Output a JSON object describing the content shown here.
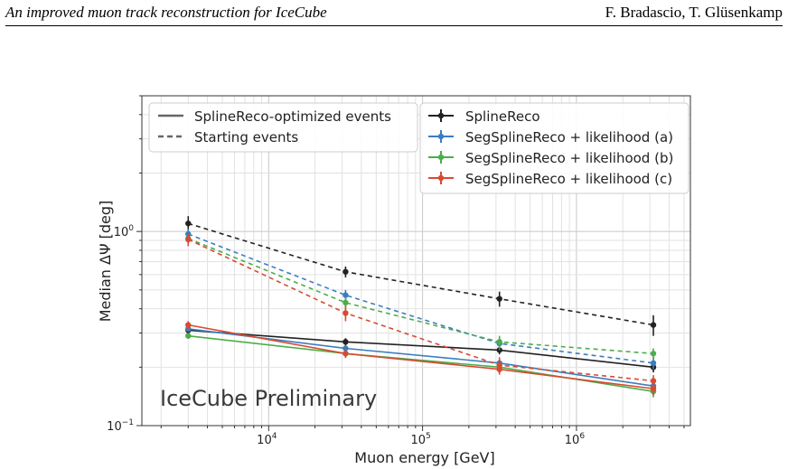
{
  "header": {
    "paper_title": "An improved muon track reconstruction for IceCube",
    "authors": "F. Bradascio, T. Glüsenkamp"
  },
  "chart_data": {
    "type": "line",
    "xscale": "log",
    "yscale": "log",
    "xlabel": "Muon energy [GeV]",
    "ylabel": "Median ΔΨ [deg]",
    "xlim": [
      1500,
      5500000
    ],
    "ylim": [
      0.1,
      5.0
    ],
    "x_ticks": [
      {
        "value": 10000,
        "base": "10",
        "exp": "4"
      },
      {
        "value": 100000,
        "base": "10",
        "exp": "5"
      },
      {
        "value": 1000000,
        "base": "10",
        "exp": "6"
      }
    ],
    "y_ticks": [
      {
        "value": 0.1,
        "base": "10",
        "exp": "−1"
      },
      {
        "value": 1,
        "base": "10",
        "exp": "0"
      }
    ],
    "grid": true,
    "annotation": "IceCube Preliminary",
    "style_legend": [
      {
        "label": "SplineReco-optimized events",
        "dash": "solid"
      },
      {
        "label": "Starting events",
        "dash": "dashed"
      }
    ],
    "x": [
      3000,
      31600,
      316000,
      3160000
    ],
    "series": [
      {
        "name": "SplineReco",
        "color": "#222222",
        "solid": [
          0.31,
          0.27,
          0.245,
          0.2
        ],
        "dashed": [
          1.1,
          0.62,
          0.45,
          0.33
        ],
        "solid_err": [
          0.01,
          0.012,
          0.012,
          0.012
        ],
        "dashed_err": [
          0.1,
          0.04,
          0.04,
          0.04
        ]
      },
      {
        "name": "SegSplineReco + likelihood (a)",
        "color": "#3a7ebf",
        "solid": [
          0.315,
          0.25,
          0.21,
          0.16
        ],
        "dashed": [
          0.97,
          0.47,
          0.265,
          0.21
        ],
        "solid_err": [
          0.01,
          0.01,
          0.01,
          0.01
        ],
        "dashed_err": [
          0.06,
          0.03,
          0.02,
          0.015
        ]
      },
      {
        "name": "SegSplineReco + likelihood (b)",
        "color": "#4aae4a",
        "solid": [
          0.29,
          0.235,
          0.2,
          0.15
        ],
        "dashed": [
          0.92,
          0.43,
          0.27,
          0.235
        ],
        "solid_err": [
          0.01,
          0.01,
          0.01,
          0.01
        ],
        "dashed_err": [
          0.06,
          0.03,
          0.02,
          0.015
        ]
      },
      {
        "name": "SegSplineReco + likelihood (c)",
        "color": "#d84a32",
        "solid": [
          0.33,
          0.235,
          0.195,
          0.155
        ],
        "dashed": [
          0.91,
          0.38,
          0.205,
          0.17
        ],
        "solid_err": [
          0.015,
          0.012,
          0.012,
          0.012
        ],
        "dashed_err": [
          0.07,
          0.035,
          0.02,
          0.012
        ]
      }
    ]
  }
}
